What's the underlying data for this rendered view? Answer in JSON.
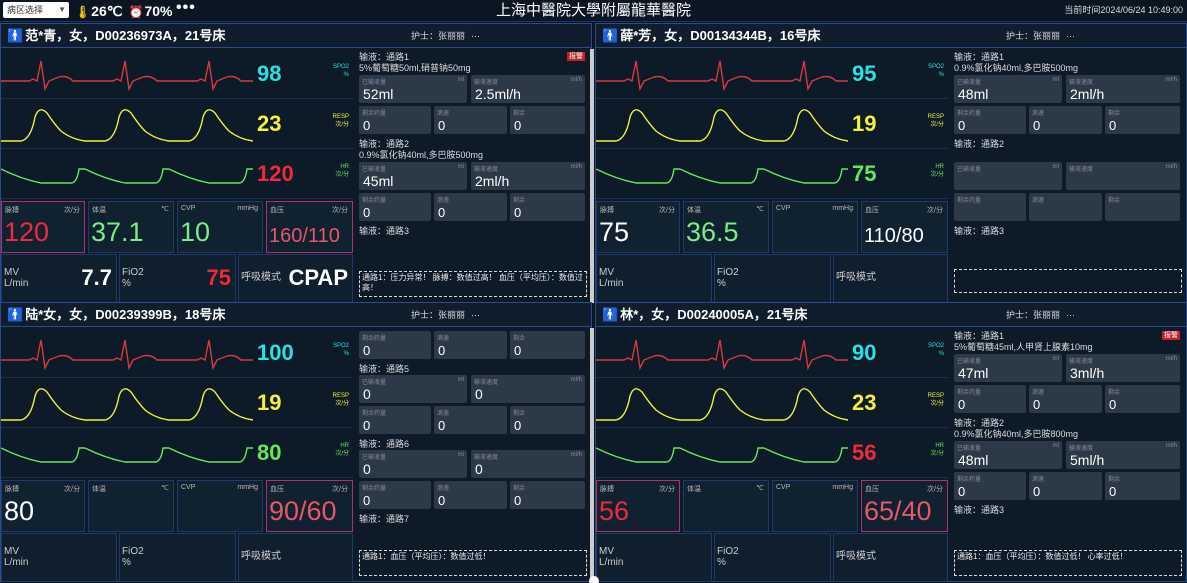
{
  "top": {
    "ward": "病区选择",
    "temp": "26℃",
    "humidity": "70%",
    "more": "•••",
    "hospital": "上海中醫院大學附屬龍華醫院",
    "clock": "当前时间2024/06/24 10:49:00"
  },
  "labels": {
    "spo2": "SPO2",
    "spo2_unit": "%",
    "resp": "RESP",
    "resp_unit": "次/分",
    "hr": "HR",
    "hr_unit": "次/分",
    "pulse": "脉搏",
    "temp": "体温",
    "cvp": "CVP",
    "bp": "血压",
    "unit_rate": "次/分",
    "unit_c": "℃",
    "unit_mmhg": "mmHg",
    "mv": "MV\nL/min",
    "fio2": "FiO2\n%",
    "mode": "呼吸模式",
    "nurse": "护士：",
    "inf_done": "已输液量",
    "inf_speed": "输液速度",
    "ml": "ml",
    "mlh": "ml/h",
    "dose": "剩余药量",
    "drip": "滴速",
    "remaining": "剩余"
  },
  "colors": {
    "spo2": "#29e3e3",
    "resp": "#f2f23a",
    "hr_normal": "#63e85e",
    "hr_alarm": "#f2283c",
    "ecg": "#d9383f",
    "alarm_border": "#b0306e"
  },
  "patients": [
    {
      "name": "范*青，女，D00236973A，21号床",
      "nurse": "张丽丽",
      "spo2": "98",
      "resp": "23",
      "hr": "120",
      "hr_alarm": true,
      "pulse": "120",
      "pulse_alarm": true,
      "temp": "37.1",
      "cvp": "10",
      "bp": "160/110",
      "bp_alarm": true,
      "mv": "7.7",
      "fio2": "75",
      "mode": "CPAP",
      "infusions": [
        {
          "title": "输液：通路1",
          "drug": "5%葡萄糖50ml,硝普钠50mg",
          "tag": "报警",
          "done": "52ml",
          "speed": "2.5ml/h",
          "r1": "0",
          "r2": "0",
          "r3": "0"
        },
        {
          "title": "输液：通路2",
          "drug": "0.9%氯化钠40ml,多巴胺500mg",
          "done": "45ml",
          "speed": "2ml/h",
          "r1": "0",
          "r2": "0",
          "r3": "0"
        },
        {
          "title": "输液：通路3"
        }
      ],
      "alarm_text": "通路1：压力异常！ 脉搏：数值过高！ 血压（平均压）：数值过高！"
    },
    {
      "name": "薛*芳，女，D00134344B，16号床",
      "nurse": "张丽丽",
      "spo2": "95",
      "resp": "19",
      "hr": "75",
      "hr_alarm": false,
      "pulse": "75",
      "pulse_alarm": false,
      "temp": "36.5",
      "cvp": "",
      "bp": "110/80",
      "bp_alarm": false,
      "mv": "",
      "fio2": "",
      "mode": "",
      "infusions": [
        {
          "title": "输液：通路1",
          "drug": "0.9%氯化钠40ml,多巴胺500mg",
          "done": "48ml",
          "speed": "2ml/h",
          "r1": "0",
          "r2": "0",
          "r3": "0"
        },
        {
          "title": "输液：通路2",
          "drug": "",
          "done": "",
          "speed": "",
          "r1": "",
          "r2": "",
          "r3": ""
        },
        {
          "title": "输液：通路3"
        }
      ],
      "alarm_text": ""
    },
    {
      "name": "陆*女，女，D00239399B，18号床",
      "nurse": "张丽丽",
      "spo2": "100",
      "resp": "19",
      "hr": "80",
      "hr_alarm": false,
      "pulse": "80",
      "pulse_alarm": false,
      "temp": "",
      "cvp": "",
      "bp": "90/60",
      "bp_alarm": true,
      "mv": "",
      "fio2": "",
      "mode": "",
      "infusions": [
        {
          "title": "",
          "r1": "0",
          "r2": "0",
          "r3": "0"
        },
        {
          "title": "输液：通路5",
          "done": "0",
          "speed": "0",
          "r1": "0",
          "r2": "0",
          "r3": "0"
        },
        {
          "title": "输液：通路6",
          "done": "0",
          "speed": "0",
          "r1": "0",
          "r2": "0",
          "r3": "0"
        },
        {
          "title": "输液：通路7"
        }
      ],
      "alarm_text": "通路1：血压（平均压）：数值过低！"
    },
    {
      "name": "林*，女，D00240005A，21号床",
      "nurse": "张丽丽",
      "spo2": "90",
      "resp": "23",
      "hr": "56",
      "hr_alarm": true,
      "pulse": "56",
      "pulse_alarm": true,
      "temp": "",
      "cvp": "",
      "bp": "65/40",
      "bp_alarm": true,
      "mv": "",
      "fio2": "",
      "mode": "",
      "infusions": [
        {
          "title": "输液：通路1",
          "drug": "5%葡萄糖45ml,人甲肾上腺素10mg",
          "tag": "报警",
          "done": "47ml",
          "speed": "3ml/h",
          "r1": "0",
          "r2": "0",
          "r3": "0"
        },
        {
          "title": "输液：通路2",
          "drug": "0.9%氯化钠40ml,多巴胺800mg",
          "done": "48ml",
          "speed": "5ml/h",
          "r1": "0",
          "r2": "0",
          "r3": "0"
        },
        {
          "title": "输液：通路3"
        }
      ],
      "alarm_text": "通路1：血压（平均压）：数值过低！ 心率过低！"
    }
  ]
}
